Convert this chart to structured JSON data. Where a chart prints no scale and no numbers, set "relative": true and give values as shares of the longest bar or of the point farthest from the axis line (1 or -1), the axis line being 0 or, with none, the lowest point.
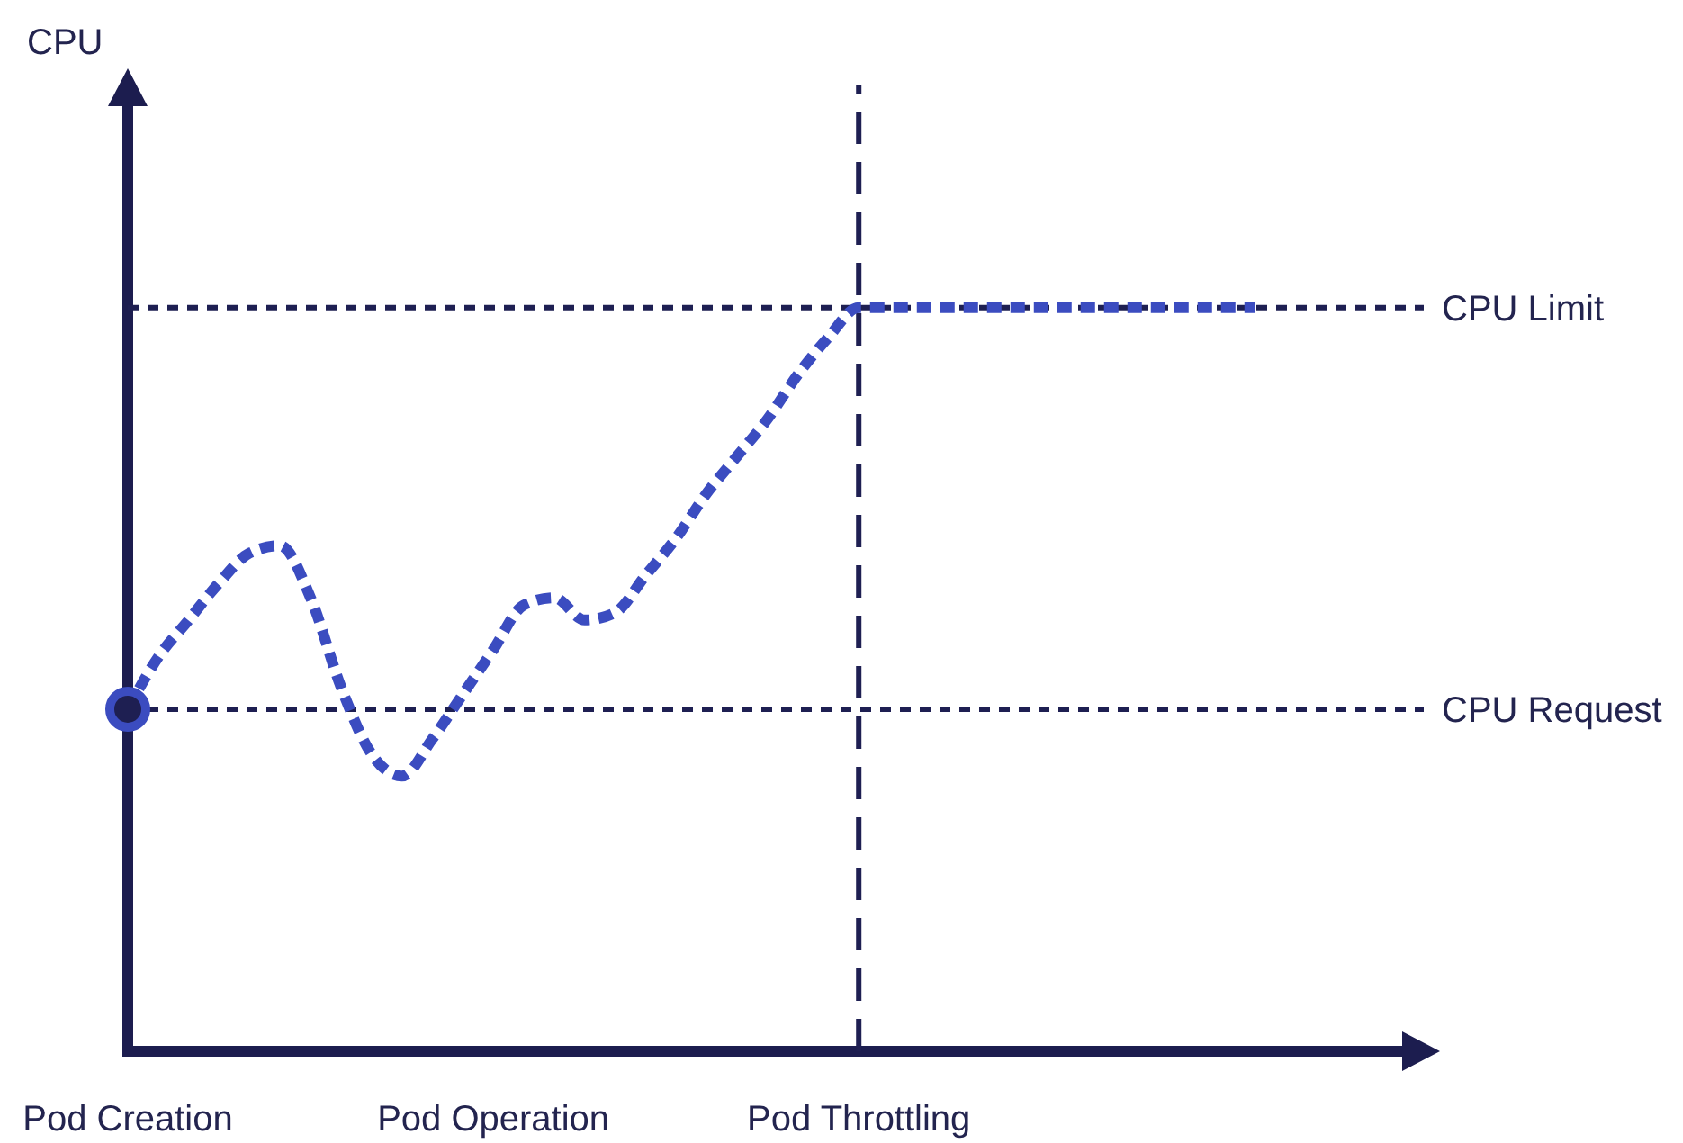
{
  "chart_data": {
    "type": "line",
    "relative": true,
    "annotations": [
      "CPU"
    ],
    "categories": [
      "Pod Creation",
      null,
      null,
      null,
      null,
      null,
      null,
      null,
      null,
      null,
      null,
      null,
      "Pod Operation",
      null,
      null,
      null,
      null,
      null,
      null,
      null,
      null,
      null,
      null,
      null,
      "Pod Throttling",
      null,
      null,
      null,
      null,
      null,
      null,
      null,
      null,
      null,
      null,
      null,
      null,
      null
    ],
    "series": [
      {
        "color": "#3b4cc0",
        "values": [
          0.46,
          0.53,
          0.58,
          0.63,
          0.67,
          0.68,
          0.61,
          0.49,
          0.4,
          0.37,
          0.42,
          0.48,
          0.54,
          0.6,
          0.61,
          0.58,
          0.59,
          0.64,
          0.69,
          0.75,
          0.8,
          0.85,
          0.91,
          0.96,
          1,
          1,
          1,
          1,
          1,
          1,
          1,
          1,
          1,
          1,
          1,
          1,
          1,
          1
        ]
      },
      {
        "type": "scatter",
        "color": "#1e1f52",
        "marker": "circle",
        "values": [
          0.46,
          null,
          null,
          null,
          null,
          null,
          null,
          null,
          null,
          null,
          null,
          null,
          null,
          null,
          null,
          null,
          null,
          null,
          null,
          null,
          null,
          null,
          null,
          null,
          null,
          null,
          null,
          null,
          null,
          null,
          null,
          null,
          null,
          null,
          null,
          null,
          null,
          null
        ]
      }
    ],
    "ref_lines": [
      {
        "axis": "y",
        "value": 1,
        "label": "CPU Limit",
        "color": "#1e1f52",
        "line_style": "dotted"
      },
      {
        "axis": "y",
        "value": 0.46,
        "label": "CPU Request",
        "color": "#1e1f52",
        "line_style": "dotted"
      },
      {
        "axis": "x",
        "value": "Pod Throttling",
        "color": "#1e1f52",
        "line_style": "dashed"
      }
    ],
    "tick_labels": "x",
    "marker": "none",
    "line_style": "dashed"
  }
}
